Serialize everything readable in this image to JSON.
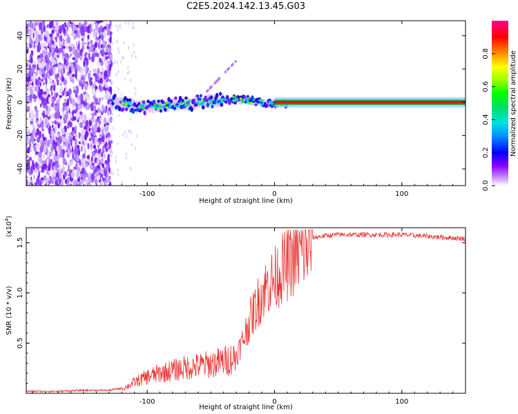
{
  "page_title": "C2E5.2024.142.13.45.G03",
  "chart_data": [
    {
      "type": "heatmap",
      "title": "C2E5.2024.142.13.45.G03",
      "xlabel": "Height of straight line (km)",
      "ylabel": "Frequency (Hz)",
      "xlim": [
        -195,
        150
      ],
      "ylim": [
        -50,
        49
      ],
      "x_ticks": [
        -100,
        0,
        100
      ],
      "x_tick_labels": [
        "-100",
        "0",
        "100"
      ],
      "y_ticks": [
        -40,
        -20,
        0,
        20,
        40
      ],
      "y_tick_labels": [
        "-40",
        "-20",
        "0",
        "20",
        "40"
      ],
      "colorbar": {
        "label": "Normalized spectral amplitude",
        "range": [
          0,
          1
        ],
        "ticks": [
          0.0,
          0.2,
          0.4,
          0.6,
          0.8
        ],
        "tick_labels": [
          "0.0",
          "0.2",
          "0.4",
          "0.6",
          "0.8"
        ]
      },
      "signal_description_points": [
        {
          "x": -125,
          "freq": 0
        },
        {
          "x": -100,
          "freq": -3
        },
        {
          "x": -60,
          "freq": 0
        },
        {
          "x": -30,
          "freq": 2
        },
        {
          "x": 0,
          "freq": -1
        },
        {
          "x": 20,
          "freq": 0
        },
        {
          "x": 150,
          "freq": 0
        }
      ]
    },
    {
      "type": "line",
      "xlabel": "Height of straight line (km)",
      "ylabel": "SNR (10 * v/v)",
      "y_multiplier_label": "(x10",
      "y_multiplier_exp": "4",
      "xlim": [
        -195,
        150
      ],
      "ylim": [
        0,
        1.65
      ],
      "x_ticks": [
        -100,
        0,
        100
      ],
      "x_tick_labels": [
        "-100",
        "0",
        "100"
      ],
      "y_ticks": [
        0.5,
        1.0,
        1.5
      ],
      "y_tick_labels": [
        "0.5",
        "1.0",
        "1.5"
      ],
      "series": [
        {
          "name": "SNR",
          "color": "#e83030",
          "x": [
            -195,
            -170,
            -150,
            -130,
            -120,
            -115,
            -110,
            -100,
            -90,
            -80,
            -70,
            -60,
            -50,
            -40,
            -30,
            -25,
            -20,
            -15,
            -10,
            -5,
            0,
            5,
            10,
            15,
            20,
            25,
            30,
            40,
            50,
            75,
            100,
            125,
            150
          ],
          "y": [
            0.02,
            0.02,
            0.03,
            0.03,
            0.05,
            0.08,
            0.12,
            0.18,
            0.22,
            0.25,
            0.28,
            0.3,
            0.32,
            0.35,
            0.4,
            0.55,
            0.75,
            0.9,
            1.05,
            1.15,
            1.2,
            1.3,
            1.35,
            1.42,
            1.48,
            1.52,
            1.55,
            1.57,
            1.58,
            1.58,
            1.58,
            1.56,
            1.54
          ]
        }
      ]
    }
  ],
  "colors": {
    "snr_line": "#e83030",
    "heat_low": "#a060f0",
    "heat_core": "#d81818",
    "axis": "#000000"
  }
}
